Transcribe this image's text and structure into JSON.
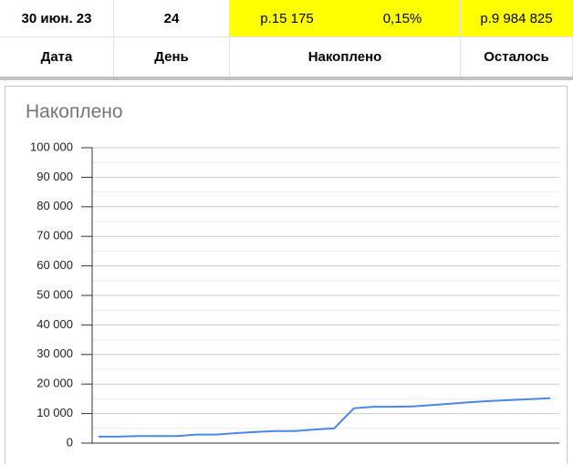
{
  "table": {
    "rows": [
      [
        "30 июн. 23",
        "24",
        "р.15 175",
        "0,15%",
        "р.9 984 825"
      ],
      [
        "Дата",
        "День",
        "Накоплено",
        "Осталось"
      ]
    ]
  },
  "chart_data": {
    "type": "line",
    "title": "Накоплено",
    "categories": [
      null,
      null,
      null,
      null,
      null,
      null,
      null,
      null,
      null,
      null,
      null,
      null,
      null,
      null,
      null,
      null,
      null,
      null,
      null,
      null,
      null,
      null,
      null,
      null
    ],
    "series": [
      {
        "name": "Накоплено",
        "color": "#4a86e8",
        "values": [
          2200,
          2200,
          2400,
          2400,
          2400,
          2900,
          2900,
          3400,
          3800,
          4100,
          4100,
          4600,
          5000,
          11800,
          12300,
          12300,
          12400,
          12900,
          13400,
          13900,
          14300,
          14600,
          14900,
          15175
        ]
      }
    ],
    "ylim": [
      0,
      100000
    ],
    "yticks": [
      0,
      {
        "value": 10000,
        "label": "10 000"
      },
      {
        "value": 20000,
        "label": "20 000"
      },
      {
        "value": 30000,
        "label": "30 000"
      },
      {
        "value": 40000,
        "label": "40 000"
      },
      {
        "value": 50000,
        "label": "50 000"
      },
      {
        "value": 60000,
        "label": "60 000"
      },
      {
        "value": 70000,
        "label": "70 000"
      },
      {
        "value": 80000,
        "label": "80 000"
      },
      {
        "value": 90000,
        "label": "90 000"
      },
      {
        "value": 100000,
        "label": "100 000"
      }
    ],
    "minor_yticks": [
      5000,
      15000,
      25000,
      35000,
      45000,
      55000,
      65000,
      75000,
      85000,
      95000
    ],
    "grid": true
  }
}
